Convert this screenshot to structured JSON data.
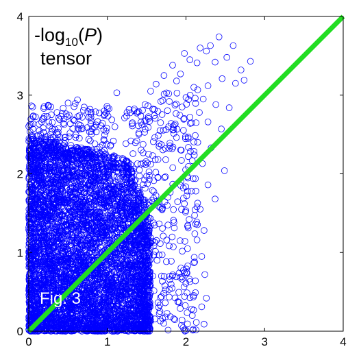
{
  "chart_data": {
    "type": "scatter",
    "title": "",
    "xlabel": "",
    "ylabel": "",
    "xlim": [
      0,
      4
    ],
    "ylim": [
      0,
      4
    ],
    "x_ticks": [
      "0",
      "1",
      "2",
      "3",
      "4"
    ],
    "y_ticks": [
      "0",
      "1",
      "2",
      "3",
      "4"
    ],
    "grid": false,
    "legend": "none",
    "marker": "open-circle",
    "colors": {
      "points": "#0000ff",
      "reference_line": "#22dd22",
      "axes": "#000000"
    },
    "annotations": {
      "ylabel_prefix": "-log",
      "ylabel_subscript": "10",
      "ylabel_suffix_open": "(",
      "ylabel_var": "P",
      "ylabel_suffix_close": ")",
      "line2": "tensor",
      "figure_label": "Fig. 3"
    },
    "reference_line": {
      "from": [
        0,
        0
      ],
      "to": [
        4,
        4
      ]
    },
    "point_cloud_summary": "dense cloud for x 0–1.5, y 0–2.5; sparse tail to about x 2.8, y 3.7",
    "points": [
      [
        2.42,
        3.74
      ],
      [
        2.31,
        3.63
      ],
      [
        2.26,
        3.56
      ],
      [
        2.18,
        3.6
      ],
      [
        1.98,
        3.53
      ],
      [
        2.6,
        3.63
      ],
      [
        2.52,
        3.48
      ],
      [
        2.37,
        3.42
      ],
      [
        2.82,
        3.43
      ],
      [
        2.7,
        3.32
      ],
      [
        2.14,
        3.41
      ],
      [
        2.05,
        3.45
      ],
      [
        1.83,
        3.38
      ],
      [
        1.93,
        3.27
      ],
      [
        2.46,
        3.21
      ],
      [
        2.63,
        3.15
      ],
      [
        2.74,
        3.19
      ],
      [
        2.28,
        3.12
      ],
      [
        2.1,
        3.1
      ],
      [
        1.88,
        3.18
      ],
      [
        1.72,
        3.25
      ],
      [
        1.62,
        3.14
      ],
      [
        1.78,
        3.02
      ],
      [
        2.0,
        2.97
      ],
      [
        2.22,
        2.95
      ],
      [
        2.38,
        2.88
      ],
      [
        2.55,
        2.84
      ],
      [
        2.17,
        2.78
      ],
      [
        1.95,
        2.85
      ],
      [
        1.68,
        2.92
      ],
      [
        1.55,
        3.05
      ],
      [
        1.48,
        2.88
      ],
      [
        1.4,
        2.79
      ],
      [
        1.25,
        2.78
      ],
      [
        1.12,
        3.03
      ],
      [
        2.05,
        2.72
      ],
      [
        2.28,
        2.66
      ],
      [
        2.45,
        2.57
      ],
      [
        1.85,
        2.62
      ],
      [
        1.67,
        2.55
      ],
      [
        2.15,
        2.4
      ],
      [
        2.32,
        2.33
      ],
      [
        2.03,
        2.22
      ],
      [
        2.21,
        2.13
      ],
      [
        1.94,
        2.3
      ],
      [
        2.12,
        1.94
      ],
      [
        2.28,
        1.86
      ],
      [
        2.07,
        1.78
      ],
      [
        1.98,
        1.62
      ],
      [
        2.18,
        1.55
      ],
      [
        2.04,
        1.42
      ],
      [
        2.23,
        1.28
      ],
      [
        2.14,
        1.16
      ],
      [
        2.02,
        1.05
      ],
      [
        2.2,
        0.95
      ],
      [
        2.1,
        0.87
      ],
      [
        2.24,
        0.72
      ],
      [
        2.05,
        0.63
      ],
      [
        2.12,
        0.49
      ],
      [
        2.26,
        0.42
      ],
      [
        2.2,
        0.31
      ],
      [
        2.08,
        0.2
      ],
      [
        2.23,
        0.09
      ],
      [
        1.95,
        0.14
      ],
      [
        1.9,
        0.37
      ],
      [
        2.49,
        2.04
      ],
      [
        2.37,
        1.68
      ],
      [
        0.5,
        2.9
      ],
      [
        0.62,
        2.94
      ],
      [
        0.25,
        2.87
      ],
      [
        0.78,
        2.82
      ],
      [
        0.05,
        2.85
      ],
      [
        0.68,
        2.72
      ],
      [
        0.36,
        2.78
      ],
      [
        1.58,
        2.82
      ]
    ]
  }
}
